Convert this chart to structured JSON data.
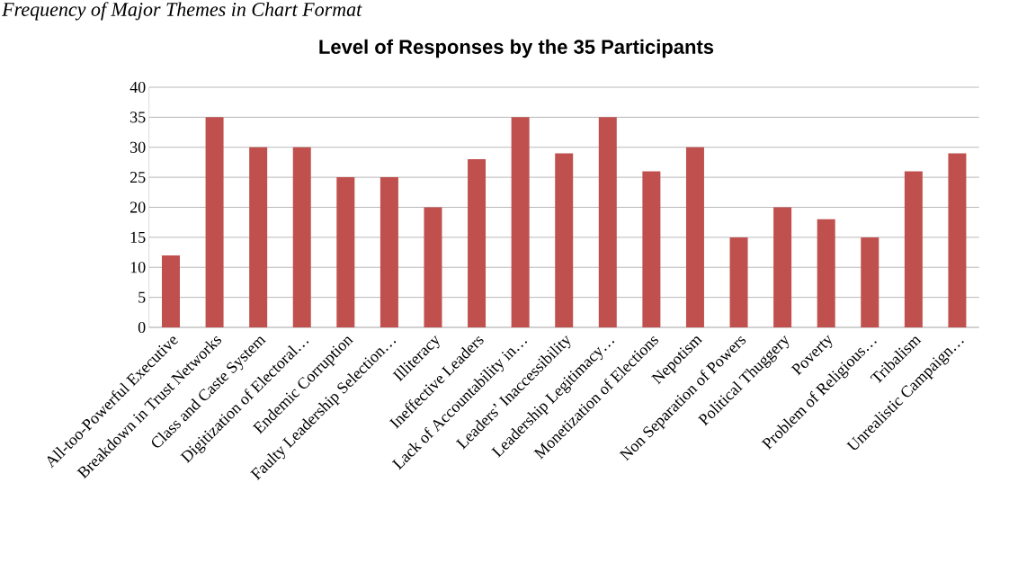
{
  "chart_data": {
    "type": "bar",
    "title": "Level of Responses by the 35 Participants",
    "annotations": [
      "Frequency of Major Themes in Chart Format"
    ],
    "categories": [
      "All-too-Powerful Executive",
      "Breakdown in Trust Networks",
      "Class and Caste System",
      "Digitization of Electoral…",
      "Endemic Corruption",
      "Faulty Leadership Selection…",
      "Illiteracy",
      "Ineffective Leaders",
      "Lack of Accountability in…",
      "Leaders’ Inaccessibility",
      "Leadership Legitimacy…",
      "Monetization of Elections",
      "Nepotism",
      "Non Separation of Powers",
      "Political Thuggery",
      "Poverty",
      "Problem of Religious…",
      "Tribalism",
      "Unrealistic Campaign…"
    ],
    "values": [
      12,
      35,
      30,
      30,
      25,
      25,
      20,
      28,
      35,
      29,
      35,
      26,
      30,
      15,
      20,
      18,
      15,
      26,
      29
    ],
    "color": "#c0504d",
    "ylim": [
      0,
      40
    ],
    "yticks": [
      0,
      5,
      10,
      15,
      20,
      25,
      30,
      35,
      40
    ],
    "grid": "y"
  }
}
